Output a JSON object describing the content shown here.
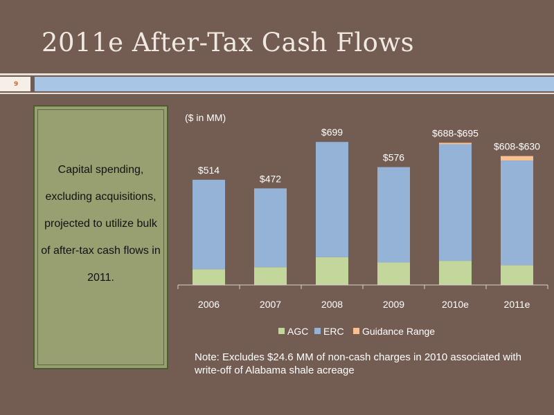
{
  "slide": {
    "title": "2011e After-Tax Cash Flows",
    "page_number": "9",
    "sidebar_text": "Capital spending, excluding acquisitions, projected to utilize bulk of after-tax cash flows in 2011.",
    "note": "Note: Excludes  $24.6 MM of non-cash charges in 2010 associated with write-off of Alabama shale acreage"
  },
  "colors": {
    "background": "#735d53",
    "agc": "#c3d69b",
    "erc": "#95b3d7",
    "guidance": "#fac090",
    "text": "#ffffff"
  },
  "chart_data": {
    "type": "bar",
    "stacked": true,
    "unit_label": "($ in MM)",
    "categories": [
      "2006",
      "2007",
      "2008",
      "2009",
      "2010e",
      "2011e"
    ],
    "series": [
      {
        "name": "AGC",
        "values": [
          77,
          87,
          136,
          110,
          118,
          97
        ]
      },
      {
        "name": "ERC",
        "values": [
          437,
          385,
          563,
          466,
          570,
          511
        ]
      },
      {
        "name": "Guidance Range",
        "values": [
          0,
          0,
          0,
          0,
          7,
          22
        ]
      }
    ],
    "totals_labels": [
      "$514",
      "$472",
      "$699",
      "$576",
      "$688-$695",
      "$608-$630"
    ],
    "ylim": [
      0,
      720
    ],
    "legend_position": "bottom",
    "grid": false
  }
}
